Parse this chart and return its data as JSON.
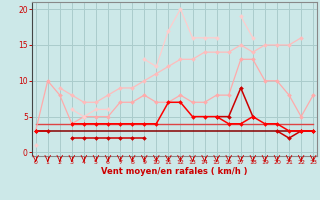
{
  "background_color": "#cce8e8",
  "grid_color": "#aacccc",
  "x_values": [
    0,
    1,
    2,
    3,
    4,
    5,
    6,
    7,
    8,
    9,
    10,
    11,
    12,
    13,
    14,
    15,
    16,
    17,
    18,
    19,
    20,
    21,
    22,
    23
  ],
  "series": [
    {
      "color": "#ffaaaa",
      "lw": 0.9,
      "marker": "D",
      "ms": 2.0,
      "y": [
        3,
        10,
        8,
        4,
        5,
        5,
        5,
        7,
        7,
        8,
        7,
        7,
        8,
        7,
        7,
        8,
        8,
        13,
        13,
        10,
        10,
        8,
        5,
        8
      ]
    },
    {
      "color": "#ffcccc",
      "lw": 0.9,
      "marker": "D",
      "ms": 2.0,
      "y": [
        1,
        null,
        null,
        6,
        5,
        6,
        6,
        null,
        null,
        13,
        12,
        17,
        20,
        16,
        16,
        16,
        null,
        19,
        16,
        null,
        null,
        null,
        null,
        null
      ]
    },
    {
      "color": "#ffbbbb",
      "lw": 0.9,
      "marker": "D",
      "ms": 2.0,
      "y": [
        3,
        null,
        9,
        8,
        7,
        7,
        8,
        9,
        9,
        10,
        11,
        12,
        13,
        13,
        14,
        14,
        14,
        15,
        14,
        15,
        15,
        15,
        16,
        null
      ]
    },
    {
      "color": "#cc0000",
      "lw": 1.1,
      "marker": "D",
      "ms": 2.0,
      "y": [
        3,
        3,
        null,
        2,
        2,
        2,
        2,
        2,
        2,
        2,
        null,
        null,
        null,
        null,
        null,
        5,
        5,
        9,
        5,
        null,
        3,
        2,
        3,
        3
      ]
    },
    {
      "color": "#ff0000",
      "lw": 1.1,
      "marker": "D",
      "ms": 2.0,
      "y": [
        3,
        null,
        null,
        4,
        4,
        4,
        4,
        4,
        4,
        4,
        4,
        7,
        7,
        5,
        5,
        5,
        4,
        4,
        5,
        4,
        4,
        3,
        3,
        3
      ]
    },
    {
      "color": "#880000",
      "lw": 1.1,
      "marker": null,
      "ms": 0,
      "y": [
        3,
        3,
        3,
        3,
        3,
        3,
        3,
        3,
        3,
        3,
        3,
        3,
        3,
        3,
        3,
        3,
        3,
        3,
        3,
        3,
        3,
        3,
        3,
        3
      ]
    },
    {
      "color": "#dd4444",
      "lw": 1.0,
      "marker": null,
      "ms": 0,
      "y": [
        4,
        4,
        4,
        4,
        4,
        4,
        4,
        4,
        4,
        4,
        4,
        4,
        4,
        4,
        4,
        4,
        4,
        4,
        4,
        4,
        4,
        4,
        4,
        4
      ]
    }
  ],
  "xlim": [
    -0.3,
    23.3
  ],
  "ylim": [
    -0.5,
    21
  ],
  "yticks": [
    0,
    5,
    10,
    15,
    20
  ],
  "xticks": [
    0,
    1,
    2,
    3,
    4,
    5,
    6,
    7,
    8,
    9,
    10,
    11,
    12,
    13,
    14,
    15,
    16,
    17,
    18,
    19,
    20,
    21,
    22,
    23
  ],
  "xlabel": "Vent moyen/en rafales ( km/h )",
  "xlabel_color": "#cc0000",
  "tick_color": "#cc0000",
  "axis_color": "#888888",
  "left_spine_color": "#444444"
}
